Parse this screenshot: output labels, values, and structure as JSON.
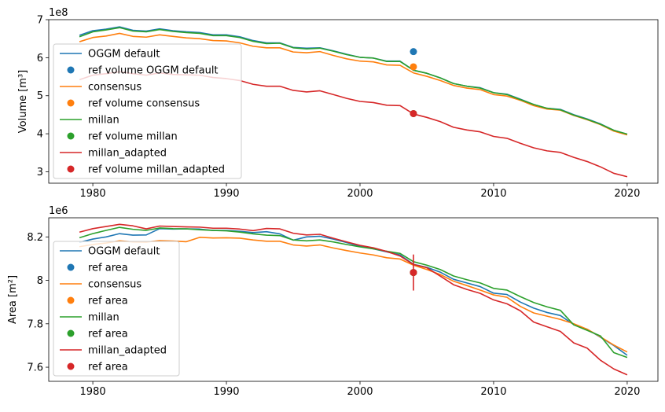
{
  "chart_data": [
    {
      "type": "line",
      "ylabel": "Volume [m³]",
      "xlabel": "",
      "offset_text": "1e8",
      "scale": 100000000,
      "xlim": [
        1976.7,
        2022.3
      ],
      "ylim": [
        2.7,
        7.0
      ],
      "x_ticks": [
        1980,
        1990,
        2000,
        2010,
        2020
      ],
      "y_ticks": [
        3,
        4,
        5,
        6,
        7
      ],
      "x": [
        1979,
        1980,
        1981,
        1982,
        1983,
        1984,
        1985,
        1986,
        1987,
        1988,
        1989,
        1990,
        1991,
        1992,
        1993,
        1994,
        1995,
        1996,
        1997,
        1998,
        1999,
        2000,
        2001,
        2002,
        2003,
        2004,
        2005,
        2006,
        2007,
        2008,
        2009,
        2010,
        2011,
        2012,
        2013,
        2014,
        2015,
        2016,
        2017,
        2018,
        2019,
        2020
      ],
      "series": [
        {
          "name": "OGGM default",
          "color": "#1f77b4",
          "values": [
            6.59,
            6.71,
            6.75,
            6.81,
            6.72,
            6.7,
            6.76,
            6.71,
            6.68,
            6.66,
            6.6,
            6.6,
            6.55,
            6.45,
            6.39,
            6.39,
            6.27,
            6.25,
            6.26,
            6.18,
            6.09,
            6.01,
            5.99,
            5.91,
            5.91,
            5.67,
            5.59,
            5.47,
            5.32,
            5.25,
            5.21,
            5.08,
            5.04,
            4.91,
            4.77,
            4.67,
            4.64,
            4.5,
            4.39,
            4.26,
            4.09,
            3.99
          ]
        },
        {
          "name": "consensus",
          "color": "#ff7f0e",
          "values": [
            6.42,
            6.53,
            6.57,
            6.64,
            6.56,
            6.54,
            6.6,
            6.56,
            6.52,
            6.5,
            6.45,
            6.44,
            6.39,
            6.3,
            6.26,
            6.26,
            6.15,
            6.13,
            6.16,
            6.06,
            5.97,
            5.91,
            5.89,
            5.81,
            5.8,
            5.6,
            5.51,
            5.4,
            5.27,
            5.2,
            5.16,
            5.03,
            4.99,
            4.88,
            4.74,
            4.65,
            4.62,
            4.48,
            4.37,
            4.24,
            4.07,
            3.97
          ]
        },
        {
          "name": "millan",
          "color": "#2ca02c",
          "values": [
            6.55,
            6.68,
            6.73,
            6.79,
            6.7,
            6.68,
            6.74,
            6.69,
            6.66,
            6.64,
            6.58,
            6.58,
            6.53,
            6.43,
            6.37,
            6.38,
            6.26,
            6.23,
            6.25,
            6.17,
            6.08,
            6.01,
            5.99,
            5.9,
            5.9,
            5.67,
            5.59,
            5.47,
            5.32,
            5.25,
            5.2,
            5.08,
            5.03,
            4.9,
            4.77,
            4.67,
            4.63,
            4.49,
            4.38,
            4.25,
            4.09,
            3.99
          ]
        },
        {
          "name": "millan_adapted",
          "color": "#d62728",
          "values": [
            5.42,
            5.54,
            5.58,
            5.63,
            5.58,
            5.54,
            5.6,
            5.56,
            5.55,
            5.54,
            5.48,
            5.45,
            5.4,
            5.3,
            5.25,
            5.25,
            5.14,
            5.1,
            5.13,
            5.03,
            4.93,
            4.85,
            4.82,
            4.75,
            4.74,
            4.52,
            4.43,
            4.32,
            4.17,
            4.1,
            4.05,
            3.93,
            3.88,
            3.75,
            3.63,
            3.55,
            3.51,
            3.38,
            3.27,
            3.13,
            2.96,
            2.87
          ]
        }
      ],
      "ref_points": [
        {
          "name": "ref volume OGGM default",
          "color": "#1f77b4",
          "x": 2004,
          "y": 6.16
        },
        {
          "name": "ref volume consensus",
          "color": "#ff7f0e",
          "x": 2004,
          "y": 5.76
        },
        {
          "name": "ref volume millan",
          "color": "#2ca02c",
          "x": 2004,
          "y": 4.53
        },
        {
          "name": "ref volume millan_adapted",
          "color": "#d62728",
          "x": 2004,
          "y": 4.53
        }
      ],
      "legend": {
        "location": "lower-left",
        "entries": [
          {
            "label": "OGGM default",
            "kind": "line",
            "color": "#1f77b4"
          },
          {
            "label": "ref volume OGGM default",
            "kind": "marker",
            "color": "#1f77b4"
          },
          {
            "label": "consensus",
            "kind": "line",
            "color": "#ff7f0e"
          },
          {
            "label": "ref volume consensus",
            "kind": "marker",
            "color": "#ff7f0e"
          },
          {
            "label": "millan",
            "kind": "line",
            "color": "#2ca02c"
          },
          {
            "label": "ref volume millan",
            "kind": "marker",
            "color": "#2ca02c"
          },
          {
            "label": "millan_adapted",
            "kind": "line",
            "color": "#d62728"
          },
          {
            "label": "ref volume millan_adapted",
            "kind": "marker",
            "color": "#d62728"
          }
        ]
      }
    },
    {
      "type": "line",
      "ylabel": "Area [m²]",
      "xlabel": "",
      "offset_text": "1e6",
      "scale": 1000000,
      "xlim": [
        1976.7,
        2022.3
      ],
      "ylim": [
        7.535,
        8.288
      ],
      "x_ticks": [
        1980,
        1990,
        2000,
        2010,
        2020
      ],
      "y_ticks": [
        7.6,
        7.8,
        8.0,
        8.2
      ],
      "x": [
        1979,
        1980,
        1981,
        1982,
        1983,
        1984,
        1985,
        1986,
        1987,
        1988,
        1989,
        1990,
        1991,
        1992,
        1993,
        1994,
        1995,
        1996,
        1997,
        1998,
        1999,
        2000,
        2001,
        2002,
        2003,
        2004,
        2005,
        2006,
        2007,
        2008,
        2009,
        2010,
        2011,
        2012,
        2013,
        2014,
        2015,
        2016,
        2017,
        2018,
        2019,
        2020
      ],
      "series": [
        {
          "name": "OGGM default",
          "color": "#1f77b4",
          "values": [
            8.175,
            8.19,
            8.2,
            8.215,
            8.208,
            8.209,
            8.238,
            8.236,
            8.237,
            8.236,
            8.23,
            8.23,
            8.226,
            8.22,
            8.224,
            8.214,
            8.185,
            8.2,
            8.203,
            8.19,
            8.174,
            8.157,
            8.145,
            8.131,
            8.117,
            8.074,
            8.06,
            8.038,
            8.005,
            7.988,
            7.971,
            7.941,
            7.935,
            7.9,
            7.872,
            7.852,
            7.838,
            7.796,
            7.775,
            7.738,
            7.7,
            7.655
          ]
        },
        {
          "name": "consensus",
          "color": "#ff7f0e",
          "values": [
            8.155,
            8.165,
            8.172,
            8.182,
            8.177,
            8.176,
            8.183,
            8.181,
            8.178,
            8.198,
            8.195,
            8.196,
            8.194,
            8.186,
            8.18,
            8.18,
            8.163,
            8.158,
            8.163,
            8.149,
            8.137,
            8.126,
            8.117,
            8.104,
            8.098,
            8.07,
            8.05,
            8.027,
            7.996,
            7.976,
            7.955,
            7.933,
            7.922,
            7.88,
            7.85,
            7.835,
            7.82,
            7.8,
            7.775,
            7.74,
            7.702,
            7.67
          ]
        },
        {
          "name": "millan",
          "color": "#2ca02c",
          "values": [
            8.196,
            8.215,
            8.23,
            8.244,
            8.235,
            8.23,
            8.241,
            8.238,
            8.237,
            8.233,
            8.23,
            8.228,
            8.222,
            8.214,
            8.208,
            8.206,
            8.186,
            8.182,
            8.186,
            8.177,
            8.165,
            8.154,
            8.145,
            8.134,
            8.124,
            8.086,
            8.07,
            8.05,
            8.02,
            8.003,
            7.988,
            7.963,
            7.955,
            7.925,
            7.898,
            7.878,
            7.862,
            7.795,
            7.77,
            7.744,
            7.667,
            7.645
          ]
        },
        {
          "name": "millan_adapted",
          "color": "#d62728",
          "values": [
            8.222,
            8.238,
            8.248,
            8.258,
            8.251,
            8.237,
            8.25,
            8.248,
            8.246,
            8.245,
            8.24,
            8.24,
            8.236,
            8.229,
            8.239,
            8.237,
            8.217,
            8.209,
            8.212,
            8.194,
            8.177,
            8.161,
            8.15,
            8.133,
            8.112,
            8.073,
            8.058,
            8.02,
            7.98,
            7.958,
            7.94,
            7.91,
            7.892,
            7.86,
            7.808,
            7.786,
            7.765,
            7.712,
            7.688,
            7.632,
            7.592,
            7.565
          ]
        }
      ],
      "ref_points": [
        {
          "name": "ref area",
          "color": "#1f77b4",
          "x": 2004,
          "y": 8.036
        },
        {
          "name": "ref area",
          "color": "#ff7f0e",
          "x": 2004,
          "y": 8.036
        },
        {
          "name": "ref area",
          "color": "#2ca02c",
          "x": 2004,
          "y": 8.036
        },
        {
          "name": "ref area",
          "color": "#d62728",
          "x": 2004,
          "y": 8.036,
          "error": [
            7.953,
            8.119
          ]
        }
      ],
      "legend": {
        "location": "lower-left",
        "entries": [
          {
            "label": "OGGM default",
            "kind": "line",
            "color": "#1f77b4"
          },
          {
            "label": "ref area",
            "kind": "marker",
            "color": "#1f77b4"
          },
          {
            "label": "consensus",
            "kind": "line",
            "color": "#ff7f0e"
          },
          {
            "label": "ref area",
            "kind": "marker",
            "color": "#ff7f0e"
          },
          {
            "label": "millan",
            "kind": "line",
            "color": "#2ca02c"
          },
          {
            "label": "ref area",
            "kind": "marker",
            "color": "#2ca02c"
          },
          {
            "label": "millan_adapted",
            "kind": "line",
            "color": "#d62728"
          },
          {
            "label": "ref area",
            "kind": "marker",
            "color": "#d62728"
          }
        ]
      }
    }
  ]
}
